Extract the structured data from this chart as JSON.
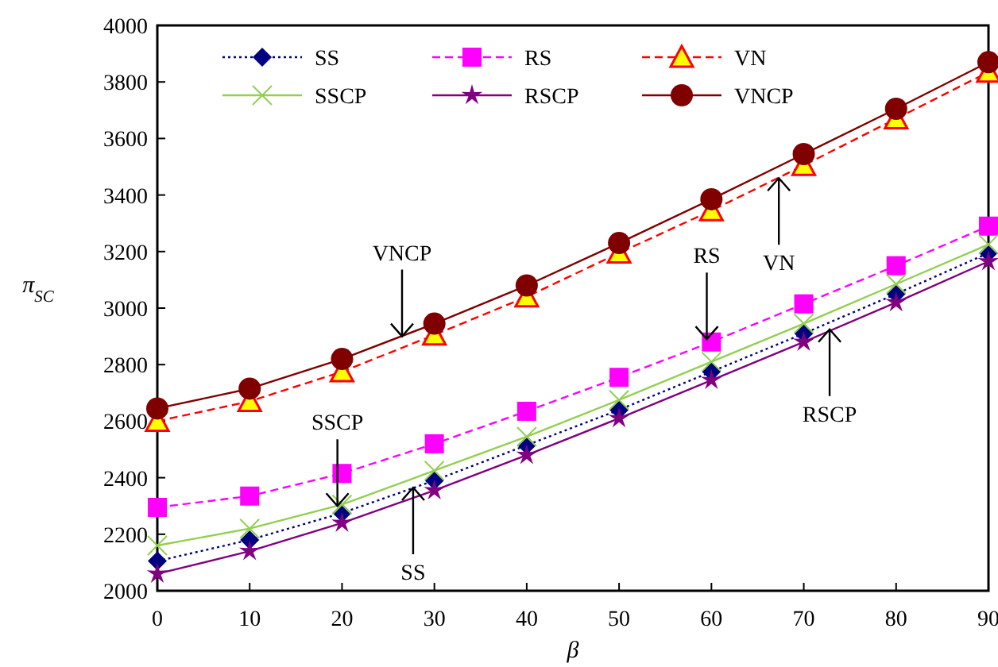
{
  "chart_data": {
    "type": "line",
    "xlabel": "β",
    "ylabel": "π$_{SC}$",
    "x": [
      0,
      10,
      20,
      30,
      40,
      50,
      60,
      70,
      80,
      90
    ],
    "xlim": [
      0,
      90
    ],
    "xticks": [
      0,
      10,
      20,
      30,
      40,
      50,
      60,
      70,
      80,
      90
    ],
    "ylim": [
      2000,
      4000
    ],
    "yticks": [
      2000,
      2200,
      2400,
      2600,
      2800,
      3000,
      3200,
      3400,
      3600,
      3800,
      4000
    ],
    "grid": false,
    "legend": "top left",
    "series": [
      {
        "name": "SS",
        "color": "#000080",
        "marker": "diamond",
        "line_style": "dotted",
        "values": [
          2105,
          2180,
          2275,
          2390,
          2515,
          2640,
          2775,
          2910,
          3050,
          3195
        ]
      },
      {
        "name": "RS",
        "color": "#ff00ff",
        "marker": "square",
        "line_style": "dashed",
        "values": [
          2295,
          2335,
          2415,
          2520,
          2635,
          2755,
          2880,
          3015,
          3150,
          3290
        ]
      },
      {
        "name": "VN",
        "color": "#ff0000",
        "marker": "triangle",
        "line_style": "dashed",
        "values": [
          2600,
          2670,
          2775,
          2905,
          3040,
          3195,
          3345,
          3505,
          3670,
          3835
        ]
      },
      {
        "name": "SSCP",
        "color": "#92d050",
        "marker": "cross",
        "line_style": "solid",
        "values": [
          2160,
          2220,
          2305,
          2425,
          2545,
          2675,
          2810,
          2945,
          3085,
          3225
        ]
      },
      {
        "name": "RSCP",
        "color": "#800080",
        "marker": "star",
        "line_style": "solid",
        "values": [
          2060,
          2140,
          2240,
          2355,
          2480,
          2610,
          2745,
          2880,
          3020,
          3165
        ]
      },
      {
        "name": "VNCP",
        "color": "#800000",
        "marker": "circle",
        "line_style": "solid",
        "values": [
          2645,
          2715,
          2820,
          2945,
          3080,
          3230,
          3385,
          3545,
          3705,
          3870
        ]
      }
    ],
    "annotations": [
      {
        "text": "VNCP",
        "x": 26.5,
        "y": 2900
      },
      {
        "text": "VN",
        "x": 67.3,
        "y": 3460
      },
      {
        "text": "RS",
        "x": 59.5,
        "y": 2890
      },
      {
        "text": "RSCP",
        "x": 72.8,
        "y": 2925
      },
      {
        "text": "SSCP",
        "x": 19.5,
        "y": 2300
      },
      {
        "text": "SS",
        "x": 27.7,
        "y": 2365
      }
    ]
  }
}
